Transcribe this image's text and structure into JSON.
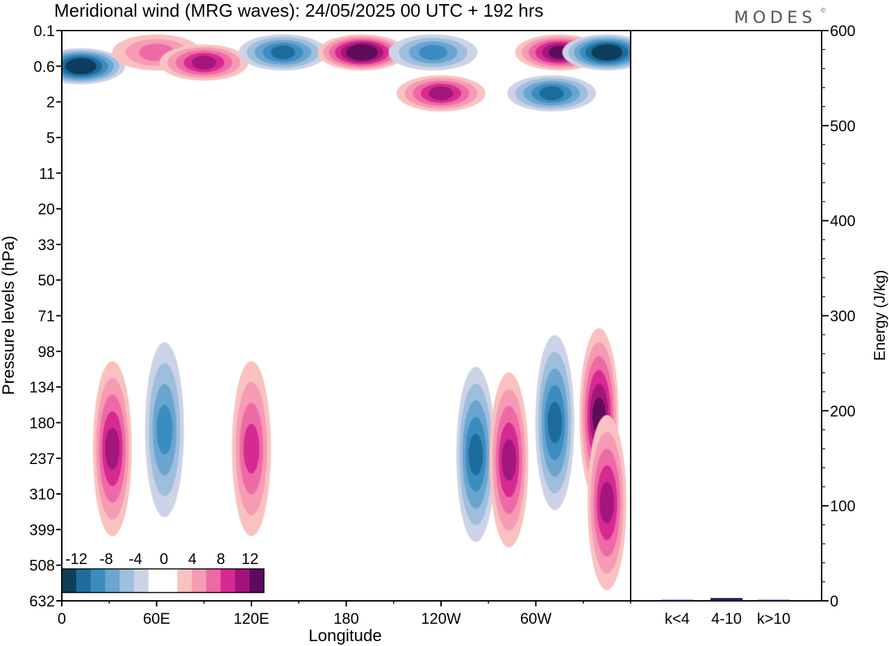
{
  "title": "Meridional wind (MRG waves):  24/05/2025  00 UTC  + 192 hrs",
  "logo": "MODES",
  "logo_mark": "©",
  "chart_data": [
    {
      "type": "heatmap",
      "xlabel": "Longitude",
      "ylabel": "Pressure levels (hPa)",
      "x_ticks": [
        "0",
        "60E",
        "120E",
        "180",
        "120W",
        "60W"
      ],
      "x_tick_lon": [
        0,
        60,
        120,
        180,
        240,
        300
      ],
      "xlim": [
        0,
        360
      ],
      "y_ticks": [
        "0.1",
        "0.6",
        "2",
        "5",
        "11",
        "20",
        "33",
        "50",
        "71",
        "98",
        "134",
        "180",
        "237",
        "310",
        "399",
        "508",
        "632"
      ],
      "y_scale": "level index (top 0.1 hPa to bottom 632 hPa)",
      "colorbar": {
        "labels": [
          "-12",
          "-8",
          "-4",
          "0",
          "4",
          "8",
          "12"
        ],
        "levels": [
          -14,
          -12,
          -10,
          -8,
          -6,
          -4,
          -2,
          2,
          4,
          6,
          8,
          10,
          12,
          14
        ],
        "colors": [
          "#0f3d5c",
          "#1f6d9c",
          "#3a8cc0",
          "#6aa5cf",
          "#9dbedd",
          "#cdd3e6",
          "#ffffff",
          "#ffffff",
          "#f9c2c0",
          "#f59bb4",
          "#ee6aa6",
          "#d62a91",
          "#a3127b",
          "#5c0a5c"
        ]
      },
      "features": [
        {
          "lon": 12,
          "p": 0.6,
          "value": -14,
          "kind": "neg"
        },
        {
          "lon": 60,
          "p": 0.3,
          "value": 6,
          "kind": "pos"
        },
        {
          "lon": 90,
          "p": 0.5,
          "value": 10,
          "kind": "pos"
        },
        {
          "lon": 140,
          "p": 0.3,
          "value": -10,
          "kind": "neg"
        },
        {
          "lon": 190,
          "p": 0.3,
          "value": 14,
          "kind": "pos"
        },
        {
          "lon": 235,
          "p": 0.3,
          "value": -8,
          "kind": "neg"
        },
        {
          "lon": 240,
          "p": 1.5,
          "value": 10,
          "kind": "pos"
        },
        {
          "lon": 315,
          "p": 0.3,
          "value": 12,
          "kind": "pos"
        },
        {
          "lon": 345,
          "p": 0.3,
          "value": -14,
          "kind": "neg"
        },
        {
          "lon": 310,
          "p": 1.5,
          "value": -10,
          "kind": "neg"
        },
        {
          "lon": 32,
          "p": 220,
          "value": 10,
          "kind": "pos"
        },
        {
          "lon": 65,
          "p": 190,
          "value": -8,
          "kind": "neg"
        },
        {
          "lon": 120,
          "p": 220,
          "value": 8,
          "kind": "pos"
        },
        {
          "lon": 262,
          "p": 230,
          "value": -10,
          "kind": "neg"
        },
        {
          "lon": 283,
          "p": 240,
          "value": 10,
          "kind": "pos"
        },
        {
          "lon": 312,
          "p": 180,
          "value": -10,
          "kind": "neg"
        },
        {
          "lon": 340,
          "p": 170,
          "value": 12,
          "kind": "pos"
        },
        {
          "lon": 345,
          "p": 330,
          "value": 10,
          "kind": "pos"
        }
      ]
    },
    {
      "type": "bar",
      "categories": [
        "k<4",
        "4-10",
        "k>10"
      ],
      "values": [
        0,
        3,
        0
      ],
      "ylabel": "Energy (J/kg)",
      "ylim": [
        0,
        600
      ],
      "y_ticks": [
        "0",
        "100",
        "200",
        "300",
        "400",
        "500",
        "600"
      ],
      "bar_color": "#20205a"
    }
  ]
}
